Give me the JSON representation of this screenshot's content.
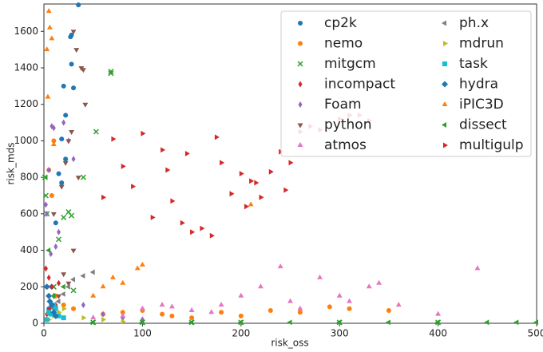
{
  "chart_data": {
    "type": "scatter",
    "xlabel": "risk_oss",
    "ylabel": "risk_mds",
    "xlim": [
      0,
      500
    ],
    "ylim": [
      0,
      1750
    ],
    "xticks": [
      0,
      100,
      200,
      300,
      400,
      500
    ],
    "yticks": [
      0,
      200,
      400,
      600,
      800,
      1000,
      1200,
      1400,
      1600
    ],
    "legend": "upper right",
    "series": [
      {
        "name": "cp2k",
        "color": "#1f77b4",
        "marker": "circle",
        "x": [
          35,
          28,
          27,
          28,
          20,
          22,
          18,
          22,
          15,
          18,
          12,
          8,
          10,
          5,
          30
        ],
        "y": [
          1745,
          1580,
          1570,
          1420,
          1300,
          1140,
          1010,
          900,
          820,
          770,
          550,
          200,
          100,
          80,
          1290
        ]
      },
      {
        "name": "nemo",
        "color": "#ff7f0e",
        "marker": "circle",
        "x": [
          10,
          5,
          8,
          3,
          12,
          20,
          30,
          60,
          80,
          100,
          130,
          150,
          200,
          260,
          290,
          310,
          350,
          120,
          180,
          230
        ],
        "y": [
          1000,
          840,
          700,
          200,
          150,
          100,
          80,
          50,
          60,
          70,
          40,
          30,
          40,
          60,
          90,
          80,
          70,
          50,
          60,
          70
        ]
      },
      {
        "name": "mitgcm",
        "color": "#2ca02c",
        "marker": "x",
        "x": [
          1,
          2,
          3,
          68,
          68,
          53,
          40,
          25,
          28,
          20,
          15,
          10,
          30,
          50,
          100,
          150,
          200,
          300,
          400
        ],
        "y": [
          800,
          700,
          600,
          1380,
          1370,
          1050,
          800,
          610,
          590,
          580,
          460,
          200,
          180,
          5,
          5,
          5,
          5,
          5,
          5
        ]
      },
      {
        "name": "incompact",
        "color": "#d62728",
        "marker": "thin_diamond",
        "x": [
          2,
          5,
          8,
          10,
          15,
          12,
          6,
          3
        ],
        "y": [
          300,
          250,
          200,
          150,
          220,
          100,
          80,
          50
        ]
      },
      {
        "name": "Foam",
        "color": "#9467bd",
        "marker": "thin_diamond",
        "x": [
          8,
          10,
          20,
          25,
          30,
          5,
          3,
          15,
          40,
          60,
          80,
          100,
          12,
          7,
          2
        ],
        "y": [
          1080,
          1070,
          1100,
          1000,
          900,
          840,
          600,
          500,
          100,
          50,
          30,
          20,
          420,
          380,
          650
        ]
      },
      {
        "name": "python",
        "color": "#8c564b",
        "marker": "tri_down",
        "x": [
          30,
          33,
          38,
          40,
          42,
          28,
          25,
          22,
          35,
          18,
          10,
          30,
          25,
          20,
          15
        ],
        "y": [
          1600,
          1500,
          1400,
          1390,
          1200,
          1050,
          1000,
          880,
          800,
          750,
          600,
          400,
          220,
          270,
          150
        ]
      },
      {
        "name": "atmos",
        "color": "#e377c2",
        "marker": "tri_up",
        "x": [
          10,
          50,
          100,
          130,
          150,
          180,
          200,
          220,
          240,
          250,
          260,
          280,
          300,
          330,
          340,
          360,
          400,
          440,
          120,
          80,
          170,
          310
        ],
        "y": [
          50,
          30,
          80,
          90,
          70,
          100,
          150,
          200,
          310,
          120,
          80,
          250,
          150,
          200,
          220,
          100,
          50,
          300,
          100,
          40,
          60,
          120
        ]
      },
      {
        "name": "ph.x",
        "color": "#7f7f7f",
        "marker": "tri_left",
        "x": [
          5,
          10,
          15,
          20,
          25,
          30,
          40,
          50
        ],
        "y": [
          50,
          80,
          120,
          160,
          200,
          240,
          260,
          280
        ]
      },
      {
        "name": "mdrun",
        "color": "#bcbd22",
        "marker": "tri_right",
        "x": [
          5,
          10,
          15,
          20,
          40,
          60,
          80
        ],
        "y": [
          20,
          40,
          60,
          80,
          30,
          20,
          10
        ]
      },
      {
        "name": "task",
        "color": "#17becf",
        "marker": "square",
        "x": [
          5,
          8,
          10,
          12,
          15,
          20,
          3
        ],
        "y": [
          60,
          50,
          100,
          80,
          40,
          30,
          20
        ]
      },
      {
        "name": "hydra",
        "color": "#1f77b4",
        "marker": "diamond",
        "x": [
          3,
          5,
          8,
          10,
          12,
          6
        ],
        "y": [
          200,
          150,
          100,
          60,
          40,
          120
        ]
      },
      {
        "name": "iPIC3D",
        "color": "#ff7f0e",
        "marker": "tri_up",
        "x": [
          5,
          6,
          8,
          3,
          4,
          10,
          60,
          95,
          100,
          70,
          210,
          80,
          50
        ],
        "y": [
          1710,
          1620,
          1560,
          1500,
          1240,
          980,
          200,
          300,
          320,
          250,
          650,
          220,
          150
        ]
      },
      {
        "name": "dissect",
        "color": "#2ca02c",
        "marker": "tri_left",
        "x": [
          2,
          20,
          50,
          100,
          150,
          200,
          250,
          300,
          350,
          400,
          450,
          480,
          500,
          10,
          5
        ],
        "y": [
          800,
          200,
          5,
          5,
          5,
          5,
          5,
          5,
          5,
          5,
          5,
          5,
          5,
          150,
          400
        ]
      },
      {
        "name": "multigulp",
        "color": "#d62728",
        "marker": "tri_right",
        "x": [
          70,
          80,
          100,
          120,
          125,
          130,
          140,
          150,
          160,
          170,
          175,
          180,
          190,
          200,
          210,
          215,
          220,
          230,
          240,
          245,
          250,
          260,
          270,
          280,
          300,
          310,
          320,
          330,
          90,
          110,
          60,
          145,
          205
        ],
        "y": [
          1010,
          860,
          1040,
          950,
          840,
          670,
          550,
          500,
          520,
          480,
          1020,
          880,
          710,
          820,
          780,
          770,
          690,
          830,
          940,
          730,
          880,
          1050,
          1080,
          1060,
          1120,
          1140,
          1140,
          1110,
          750,
          580,
          690,
          930,
          640
        ]
      }
    ]
  }
}
